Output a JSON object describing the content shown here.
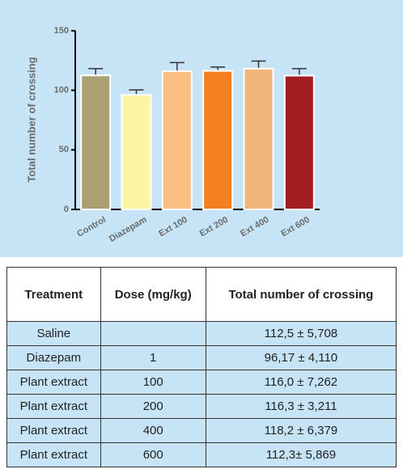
{
  "chart_data": {
    "type": "bar",
    "ylabel": "Total number of crossing",
    "categories": [
      "Control",
      "Diazepam",
      "Ext 100",
      "Ext 200",
      "Ext 400",
      "Ext 600"
    ],
    "values": [
      112.5,
      96.17,
      116.0,
      116.3,
      118.2,
      112.3
    ],
    "errors": [
      5.708,
      4.11,
      7.262,
      3.211,
      6.379,
      5.869
    ],
    "colors": [
      "#aba072",
      "#fbf5a4",
      "#fbbf84",
      "#f47f21",
      "#f2b57a",
      "#a11d22"
    ],
    "ylim": [
      0,
      150
    ],
    "yticks": [
      0,
      50,
      100,
      150
    ],
    "grid": false
  },
  "table": {
    "headers": [
      "Treatment",
      "Dose (mg/kg)",
      "Total number of crossing"
    ],
    "rows": [
      [
        "Saline",
        null,
        "112,5 ± 5,708"
      ],
      [
        "Diazepam",
        "1",
        "96,17 ± 4,110"
      ],
      [
        "Plant extract",
        "100",
        "116,0 ± 7,262"
      ],
      [
        "Plant extract",
        "200",
        "116,3 ± 3,211"
      ],
      [
        "Plant extract",
        "400",
        "118,2 ± 6,379"
      ],
      [
        "Plant extract",
        "600",
        "112,3± 5,869"
      ]
    ]
  }
}
